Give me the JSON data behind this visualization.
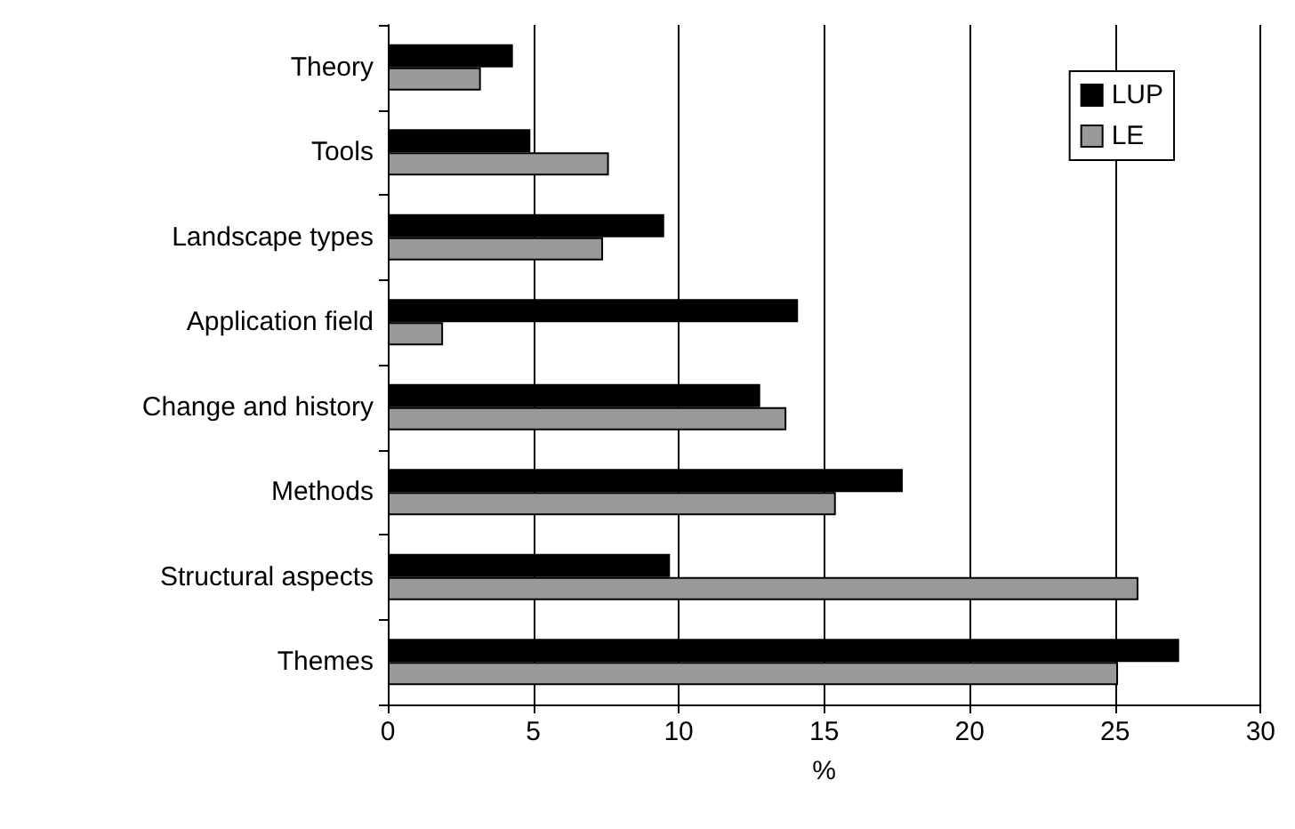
{
  "chart_data": {
    "type": "bar",
    "orientation": "horizontal",
    "xlabel": "%",
    "categories": [
      "Theory",
      "Tools",
      "Landscape types",
      "Application field",
      "Change and history",
      "Methods",
      "Structural aspects",
      "Themes"
    ],
    "series": [
      {
        "name": "LUP",
        "color": "#000000",
        "values": [
          4.3,
          4.9,
          9.5,
          14.1,
          12.8,
          17.7,
          9.7,
          27.2
        ]
      },
      {
        "name": "LE",
        "color": "#999999",
        "values": [
          3.2,
          7.6,
          7.4,
          1.9,
          13.7,
          15.4,
          25.8,
          25.1
        ]
      }
    ],
    "xlim": [
      0,
      30
    ],
    "xticks": [
      0,
      5,
      10,
      15,
      20,
      25,
      30
    ],
    "grid": "x",
    "legend": "top right"
  }
}
